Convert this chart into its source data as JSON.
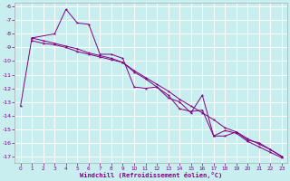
{
  "xlabel": "Windchill (Refroidissement éolien,°C)",
  "bg_color": "#c8eef0",
  "grid_color": "#ffffff",
  "line_color": "#800080",
  "xlim": [
    -0.5,
    23.5
  ],
  "ylim": [
    -17.5,
    -5.7
  ],
  "yticks": [
    -6,
    -7,
    -8,
    -9,
    -10,
    -11,
    -12,
    -13,
    -14,
    -15,
    -16,
    -17
  ],
  "xticks": [
    0,
    1,
    2,
    3,
    4,
    5,
    6,
    7,
    8,
    9,
    10,
    11,
    12,
    13,
    14,
    15,
    16,
    17,
    18,
    19,
    20,
    21,
    22,
    23
  ],
  "series1_x": [
    0,
    1,
    3,
    4,
    5,
    6,
    7,
    8,
    9,
    10,
    11,
    12,
    13,
    14,
    15,
    16,
    17,
    18,
    19,
    20,
    21,
    22,
    23
  ],
  "series1_y": [
    -13.3,
    -8.3,
    -8.0,
    -6.2,
    -7.2,
    -7.3,
    -9.5,
    -9.5,
    -9.8,
    -11.9,
    -12.0,
    -11.9,
    -12.7,
    -13.0,
    -13.8,
    -12.5,
    -15.5,
    -15.5,
    -15.2,
    -15.8,
    -16.0,
    -16.5,
    -17.0
  ],
  "series2_x": [
    1,
    2,
    3,
    4,
    5,
    6,
    7,
    8,
    9,
    10,
    11,
    12,
    13,
    14,
    15,
    16,
    17,
    18,
    19,
    20,
    21,
    22,
    23
  ],
  "series2_y": [
    -8.5,
    -8.7,
    -8.8,
    -9.0,
    -9.3,
    -9.5,
    -9.7,
    -9.9,
    -10.1,
    -10.7,
    -11.2,
    -11.7,
    -12.2,
    -12.8,
    -13.3,
    -13.8,
    -14.3,
    -14.9,
    -15.2,
    -15.7,
    -16.1,
    -16.5,
    -17.0
  ],
  "series3_x": [
    1,
    2,
    3,
    4,
    5,
    6,
    7,
    8,
    9,
    10,
    11,
    12,
    13,
    14,
    15,
    16,
    17,
    18,
    19,
    20,
    21,
    22,
    23
  ],
  "series3_y": [
    -8.3,
    -8.5,
    -8.7,
    -8.9,
    -9.1,
    -9.4,
    -9.6,
    -9.8,
    -10.1,
    -10.8,
    -11.3,
    -11.9,
    -12.5,
    -13.5,
    -13.7,
    -13.6,
    -15.5,
    -15.1,
    -15.3,
    -15.9,
    -16.3,
    -16.7,
    -17.1
  ]
}
